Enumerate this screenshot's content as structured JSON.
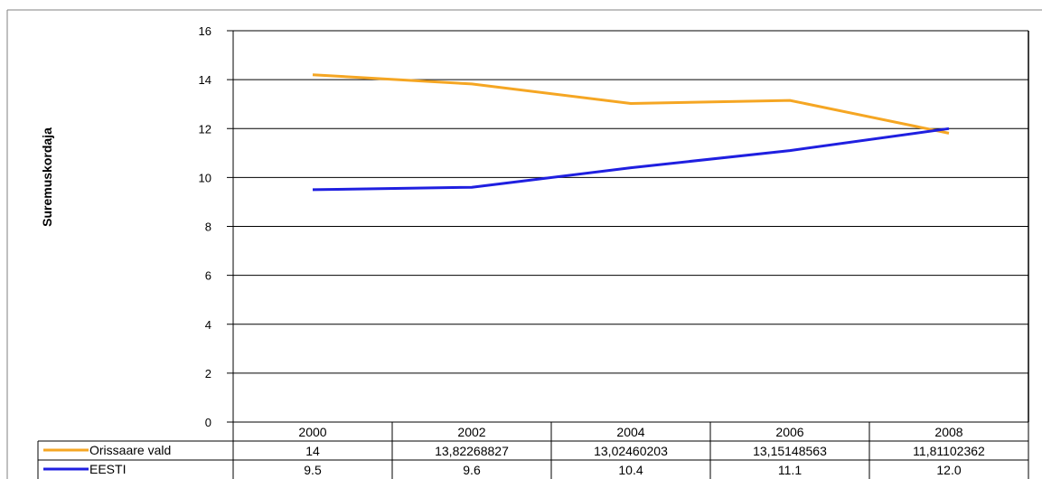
{
  "chart_data": {
    "type": "line",
    "ylabel": "Suremuskordaja",
    "ylim": [
      0,
      16
    ],
    "yticks": [
      0,
      2,
      4,
      6,
      8,
      10,
      12,
      14,
      16
    ],
    "grid": true,
    "legend": "data-table-below",
    "categories": [
      "2000",
      "2002",
      "2004",
      "2006",
      "2008"
    ],
    "series": [
      {
        "name": "Orissaare vald",
        "color": "#F5A623",
        "values": [
          14.2,
          13.82268827,
          13.02460203,
          13.15148563,
          11.81102362
        ],
        "labels": [
          "14",
          "13,82268827",
          "13,02460203",
          "13,15148563",
          "11,81102362"
        ]
      },
      {
        "name": "EESTI",
        "color": "#1F1FE0",
        "values": [
          9.5,
          9.6,
          10.4,
          11.1,
          12.0
        ],
        "labels": [
          "9.5",
          "9.6",
          "10.4",
          "11.1",
          "12.0"
        ]
      }
    ]
  }
}
